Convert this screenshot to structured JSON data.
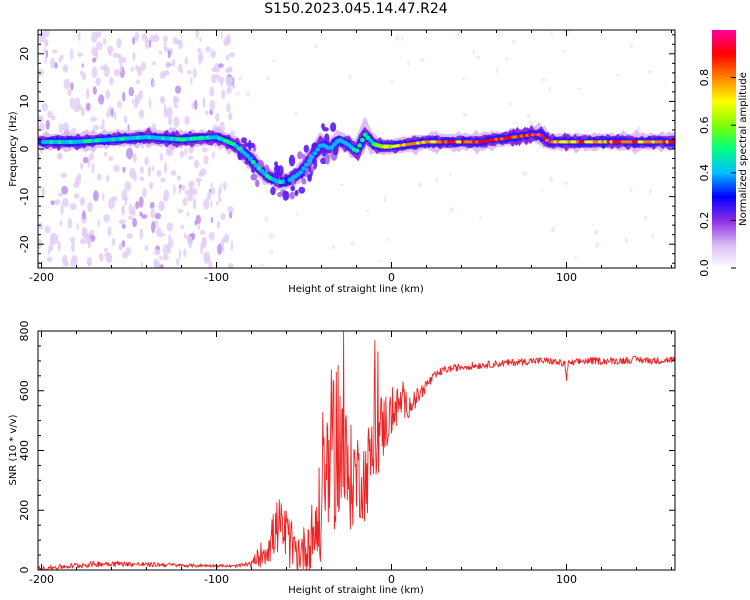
{
  "title": "S150.2023.045.14.47.R24",
  "chart_data": [
    {
      "type": "heatmap",
      "xlabel": "Height of straight line (km)",
      "ylabel": "Frequency (Hz)",
      "xlim": [
        -202,
        162
      ],
      "ylim": [
        -25,
        25
      ],
      "xticks": [
        -200,
        -100,
        0,
        100
      ],
      "yticks": [
        -20,
        -10,
        0,
        10,
        20
      ],
      "colorbar": {
        "label": "Normalized spectral amplitude",
        "range": [
          0.0,
          1.0
        ],
        "ticks": [
          0.0,
          0.2,
          0.4,
          0.6,
          0.8
        ],
        "tick_labels": [
          "0.0",
          "0.2",
          "0.4",
          "0.6",
          "0.8"
        ],
        "colors": [
          "#ffffff",
          "#d9b8f5",
          "#8a2be2",
          "#0000ff",
          "#00bfff",
          "#00ff80",
          "#7fff00",
          "#ffff00",
          "#ff8000",
          "#ff0000",
          "#ff00a0"
        ]
      },
      "ridge": {
        "x": [
          -198,
          -180,
          -160,
          -140,
          -120,
          -100,
          -90,
          -82,
          -76,
          -70,
          -64,
          -58,
          -52,
          -48,
          -44,
          -40,
          -35,
          -30,
          -25,
          -20,
          -15,
          -10,
          -5,
          0,
          20,
          50,
          70,
          80,
          85,
          90,
          100,
          120,
          140,
          162
        ],
        "freq_hz": [
          1.5,
          1.5,
          2.0,
          2.5,
          2.0,
          2.5,
          1.0,
          -1.5,
          -4.0,
          -6.0,
          -7.0,
          -6.5,
          -5.0,
          -3.0,
          -1.0,
          1.0,
          0.0,
          2.0,
          1.0,
          -0.5,
          3.0,
          1.0,
          0.5,
          0.5,
          1.5,
          1.5,
          2.5,
          3.0,
          3.0,
          1.5,
          1.5,
          1.5,
          1.5,
          1.5
        ]
      },
      "peak_amplitude": {
        "x": [
          -198,
          -140,
          -100,
          -70,
          -40,
          -15,
          0,
          20,
          40,
          60,
          75,
          85,
          95,
          120,
          162
        ],
        "values": [
          0.45,
          0.5,
          0.5,
          0.45,
          0.4,
          0.5,
          0.75,
          0.85,
          0.9,
          0.9,
          0.95,
          1.0,
          0.85,
          0.85,
          0.85
        ]
      }
    },
    {
      "type": "line",
      "xlabel": "Height of straight line (km)",
      "ylabel": "SNR (10 * v/v)",
      "xlim": [
        -202,
        162
      ],
      "ylim": [
        0,
        800
      ],
      "xticks": [
        -200,
        -100,
        0,
        100
      ],
      "yticks": [
        0,
        200,
        400,
        600,
        800
      ],
      "series_color": "#ee2222",
      "x": [
        -200,
        -190,
        -180,
        -170,
        -160,
        -150,
        -140,
        -130,
        -120,
        -110,
        -100,
        -90,
        -80,
        -75,
        -70,
        -65,
        -60,
        -55,
        -50,
        -45,
        -40,
        -35,
        -30,
        -25,
        -20,
        -15,
        -10,
        -5,
        0,
        5,
        10,
        15,
        20,
        25,
        30,
        40,
        50,
        60,
        70,
        80,
        90,
        99,
        100,
        101,
        110,
        120,
        130,
        140,
        150,
        162
      ],
      "values": [
        5,
        10,
        15,
        20,
        22,
        20,
        18,
        18,
        15,
        15,
        15,
        12,
        20,
        50,
        80,
        150,
        110,
        60,
        70,
        120,
        180,
        380,
        450,
        300,
        320,
        300,
        420,
        480,
        520,
        560,
        550,
        580,
        620,
        650,
        670,
        680,
        685,
        690,
        695,
        700,
        700,
        690,
        640,
        690,
        700,
        700,
        700,
        705,
        700,
        705
      ],
      "noise_amplitude": [
        8,
        8,
        10,
        10,
        10,
        8,
        8,
        8,
        6,
        6,
        5,
        5,
        10,
        40,
        60,
        100,
        100,
        70,
        80,
        120,
        200,
        280,
        300,
        200,
        150,
        140,
        160,
        120,
        80,
        60,
        40,
        30,
        20,
        15,
        12,
        12,
        12,
        12,
        12,
        12,
        12,
        12,
        12,
        12,
        12,
        12,
        12,
        12,
        12,
        12
      ]
    }
  ]
}
